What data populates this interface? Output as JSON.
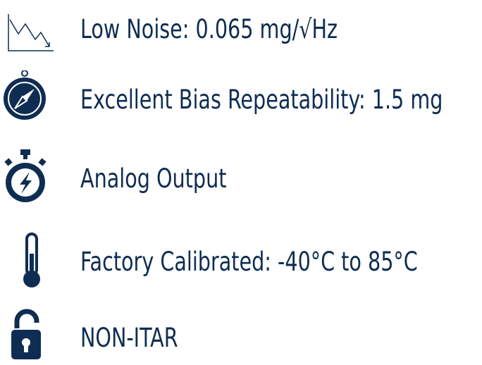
{
  "features": [
    {
      "label": "Low Noise: 0.065 mg/√Hz"
    },
    {
      "label": "Excellent Bias Repeatability: 1.5 mg"
    },
    {
      "label": "Analog Output"
    },
    {
      "label": "Factory Calibrated: -40°C to 85°C"
    },
    {
      "label": "NON-ITAR"
    }
  ]
}
